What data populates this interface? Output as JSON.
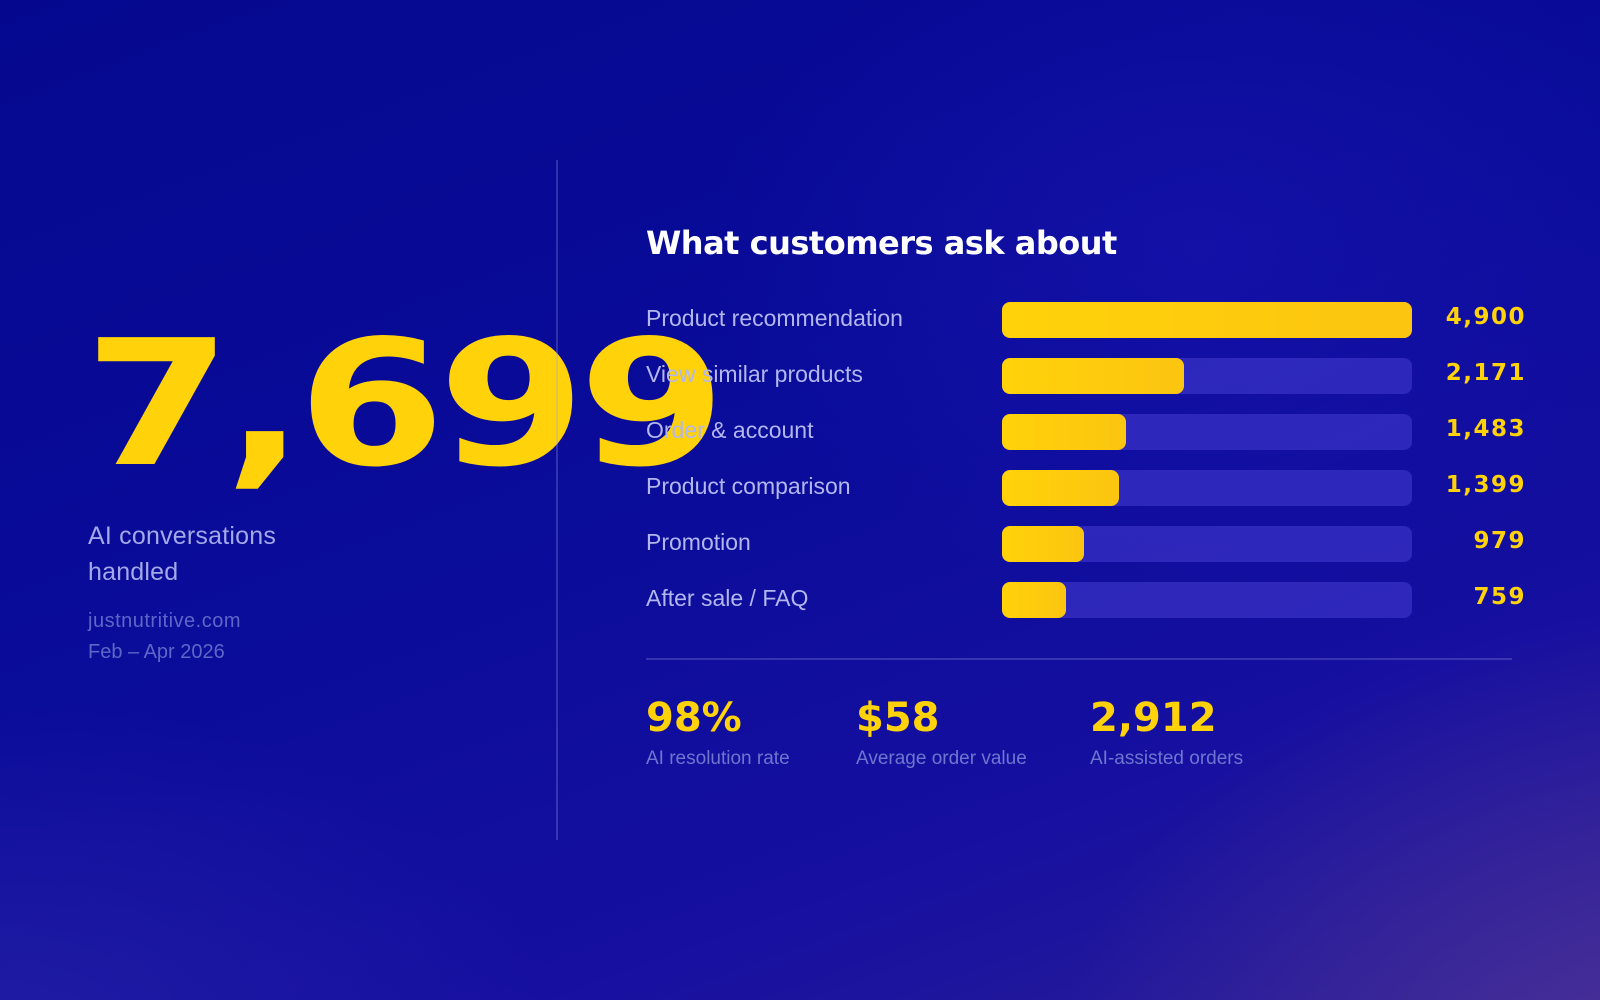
{
  "hero": {
    "number": "7,699",
    "caption": "AI conversations handled",
    "site": "justnutritive.com",
    "date_range": "Feb – Apr 2026"
  },
  "colors": {
    "accent": "#ffd20a",
    "background": "#0a0c9a",
    "track": "#3a33c8",
    "label": "#b3b7ee"
  },
  "chart_data": {
    "type": "bar",
    "orientation": "horizontal",
    "title": "What customers ask about",
    "categories": [
      "Product recommendation",
      "View similar products",
      "Order & account",
      "Product comparison",
      "Promotion",
      "After sale / FAQ"
    ],
    "values": [
      4900,
      2171,
      1483,
      1399,
      979,
      759
    ],
    "value_labels": [
      "4,900",
      "2,171",
      "1,483",
      "1,399",
      "979",
      "759"
    ],
    "xlim": [
      0,
      4900
    ],
    "grid": false,
    "legend": "none"
  },
  "stats": [
    {
      "value": "98%",
      "label": "AI resolution rate"
    },
    {
      "value": "$58",
      "label": "Average order value"
    },
    {
      "value": "2,912",
      "label": "AI-assisted orders"
    }
  ]
}
